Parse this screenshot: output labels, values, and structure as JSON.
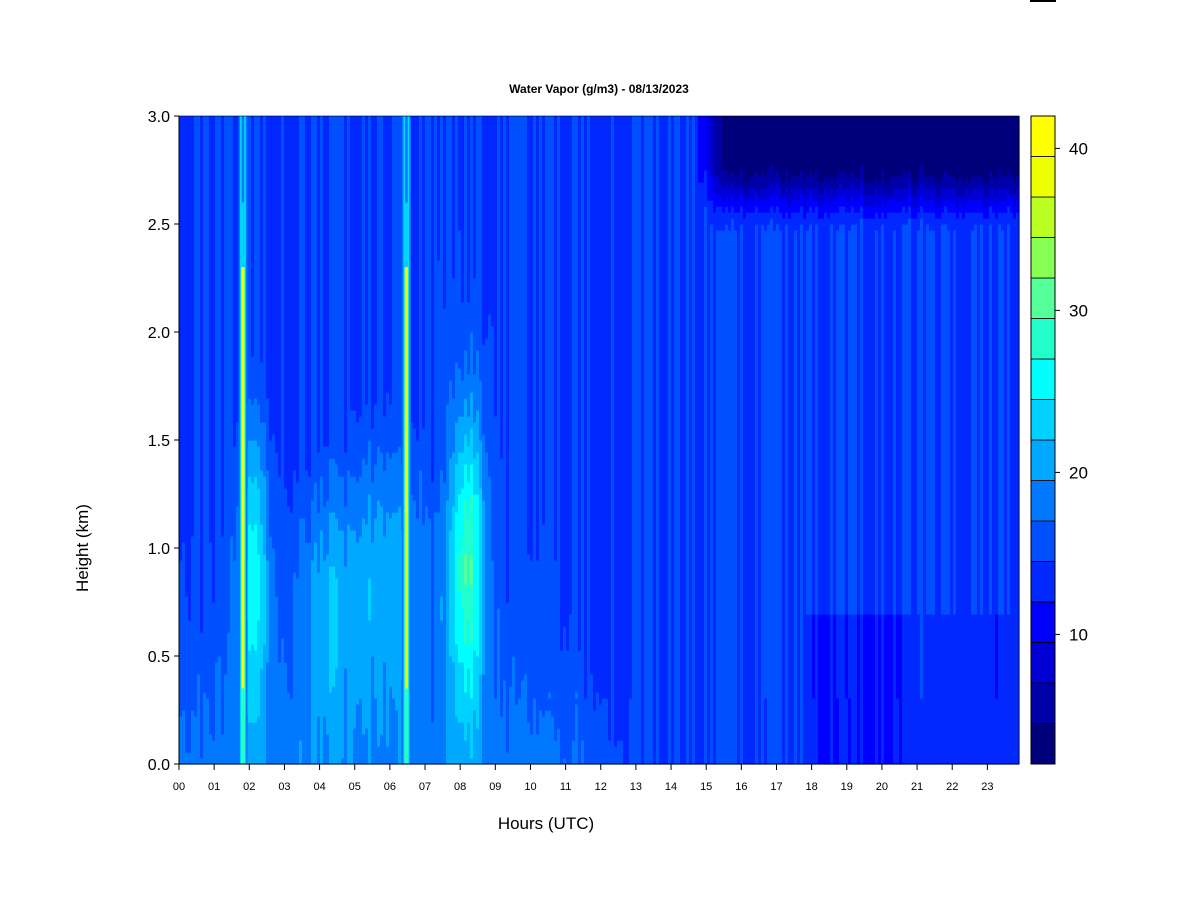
{
  "chart_data": {
    "type": "heatmap",
    "title": "Water Vapor (g/m3) - 08/13/2023",
    "xlabel": "Hours (UTC)",
    "ylabel": "Height (km)",
    "x_ticks": [
      "00",
      "01",
      "02",
      "03",
      "04",
      "05",
      "06",
      "07",
      "08",
      "09",
      "10",
      "11",
      "12",
      "13",
      "14",
      "15",
      "16",
      "17",
      "18",
      "19",
      "20",
      "21",
      "22",
      "23"
    ],
    "y_ticks": [
      "0.0",
      "0.5",
      "1.0",
      "1.5",
      "2.0",
      "2.5",
      "3.0"
    ],
    "xlim": [
      0,
      23.9
    ],
    "ylim": [
      0,
      3.0
    ],
    "colorbar": {
      "min": 2,
      "max": 42,
      "step": 2.5,
      "ticks": [
        "10",
        "20",
        "30",
        "40"
      ],
      "colors": [
        "#00007a",
        "#0000a8",
        "#0000d6",
        "#0000ff",
        "#0028ff",
        "#0050ff",
        "#0078ff",
        "#00a8ff",
        "#00d2ff",
        "#00ffff",
        "#22ffcc",
        "#55ff99",
        "#88ff55",
        "#bbff22",
        "#eeff00",
        "#ffff00",
        "#ffc800",
        "#ff9600",
        "#ff6400",
        "#ff3200",
        "#ff0000",
        "#cc0000",
        "#990000",
        "#800000"
      ]
    },
    "features": {
      "plume_1_center_hour": 8.2,
      "plume_1_center_height_km": 0.9,
      "plume_1_peak": 31,
      "plume_2_center_hour": 2.1,
      "plume_2_center_height_km": 0.9,
      "plume_2_peak": 26,
      "rain_streaks": [
        {
          "hour": 1.82,
          "top_km": 3.0,
          "peak": 41
        },
        {
          "hour": 6.47,
          "top_km": 3.0,
          "peak": 41
        }
      ],
      "surface_moist_layer_km": 0.45,
      "surface_value_before_1030": 18,
      "surface_value_after_1500": 12,
      "dry_upper_region": {
        "from_hour": 14.5,
        "to_hour": 23.9,
        "above_km": 2.6,
        "value": 3
      }
    }
  }
}
